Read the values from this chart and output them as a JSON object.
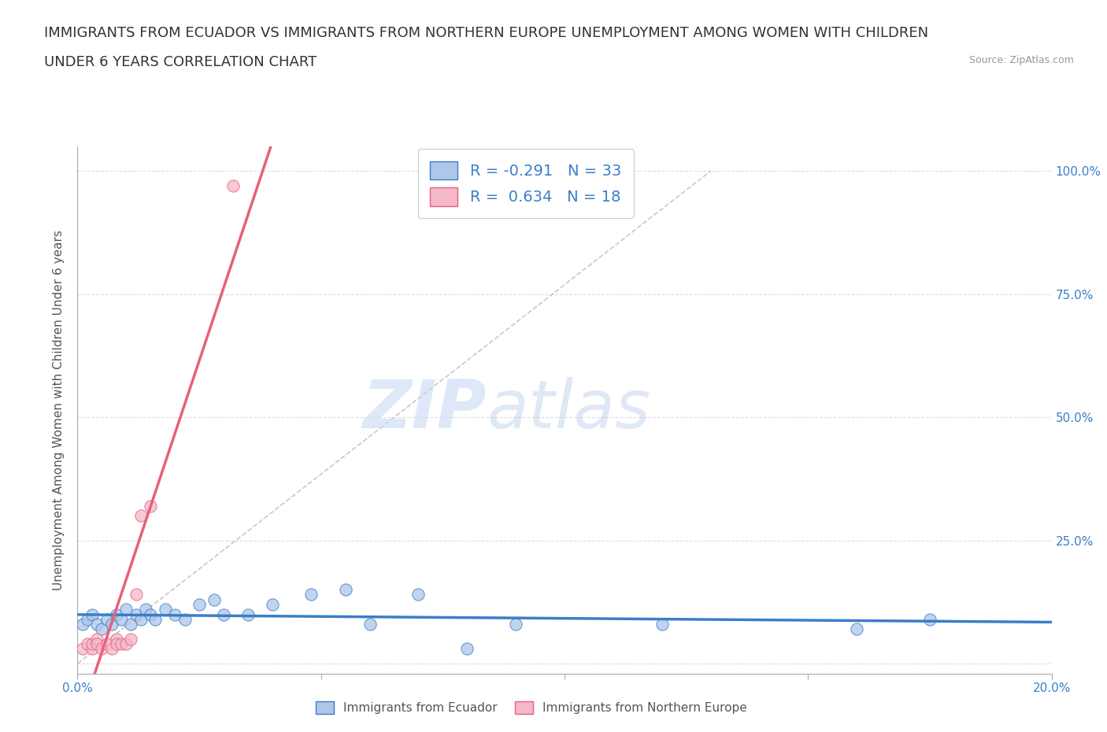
{
  "title_line1": "IMMIGRANTS FROM ECUADOR VS IMMIGRANTS FROM NORTHERN EUROPE UNEMPLOYMENT AMONG WOMEN WITH CHILDREN",
  "title_line2": "UNDER 6 YEARS CORRELATION CHART",
  "source": "Source: ZipAtlas.com",
  "ylabel": "Unemployment Among Women with Children Under 6 years",
  "xlim": [
    0.0,
    0.2
  ],
  "ylim": [
    -0.02,
    1.05
  ],
  "xticks": [
    0.0,
    0.05,
    0.1,
    0.15,
    0.2
  ],
  "xtick_labels": [
    "0.0%",
    "",
    "",
    "",
    "20.0%"
  ],
  "ytick_labels_right": [
    "",
    "25.0%",
    "50.0%",
    "75.0%",
    "100.0%"
  ],
  "yticks_right": [
    0.0,
    0.25,
    0.5,
    0.75,
    1.0
  ],
  "ecuador_color": "#aec6e8",
  "northern_color": "#f4b8c8",
  "ecuador_trend_color": "#3a7ec8",
  "northern_trend_color": "#e8607a",
  "watermark_zip": "ZIP",
  "watermark_atlas": "atlas",
  "title_fontsize": 13,
  "label_fontsize": 11,
  "ecuador_x": [
    0.001,
    0.002,
    0.003,
    0.004,
    0.005,
    0.006,
    0.007,
    0.008,
    0.009,
    0.01,
    0.011,
    0.012,
    0.013,
    0.014,
    0.015,
    0.016,
    0.018,
    0.02,
    0.022,
    0.025,
    0.028,
    0.03,
    0.035,
    0.04,
    0.048,
    0.055,
    0.06,
    0.07,
    0.08,
    0.09,
    0.12,
    0.16,
    0.175
  ],
  "ecuador_y": [
    0.08,
    0.09,
    0.1,
    0.08,
    0.07,
    0.09,
    0.08,
    0.1,
    0.09,
    0.11,
    0.08,
    0.1,
    0.09,
    0.11,
    0.1,
    0.09,
    0.11,
    0.1,
    0.09,
    0.12,
    0.13,
    0.1,
    0.1,
    0.12,
    0.14,
    0.15,
    0.08,
    0.14,
    0.03,
    0.08,
    0.08,
    0.07,
    0.09
  ],
  "northern_x": [
    0.001,
    0.002,
    0.003,
    0.003,
    0.004,
    0.004,
    0.005,
    0.006,
    0.007,
    0.008,
    0.008,
    0.009,
    0.01,
    0.011,
    0.012,
    0.013,
    0.015,
    0.032
  ],
  "northern_y": [
    0.03,
    0.04,
    0.03,
    0.04,
    0.05,
    0.04,
    0.03,
    0.04,
    0.03,
    0.05,
    0.04,
    0.04,
    0.04,
    0.05,
    0.14,
    0.3,
    0.32,
    0.97
  ],
  "grid_color": "#dddddd",
  "background_color": "#ffffff"
}
